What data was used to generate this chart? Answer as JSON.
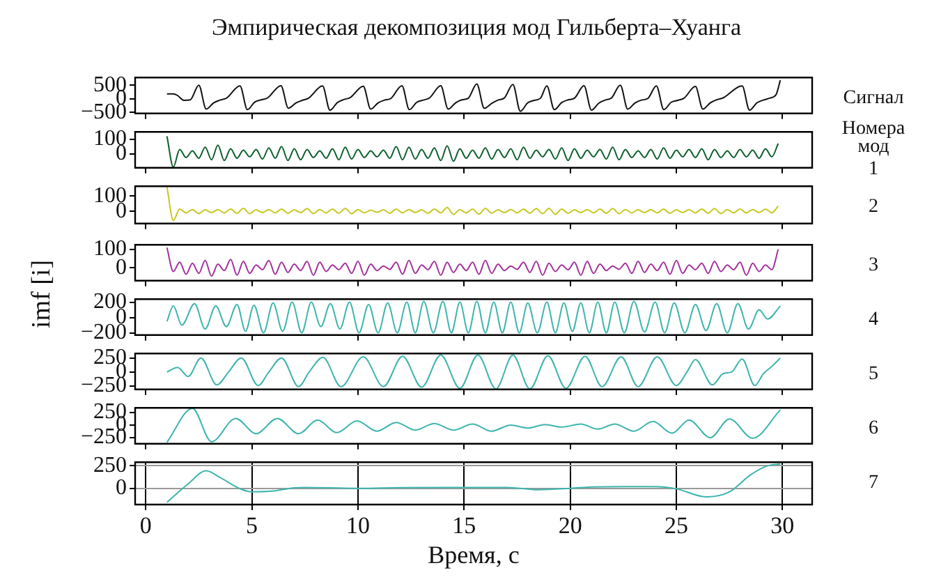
{
  "chart_data": [
    {
      "type": "line",
      "title": "Эмпирическая декомпозиция мод Гильберта–Хуанга",
      "y2label": "Сигнал",
      "xlim": [
        -0.5,
        31.4
      ],
      "xticks": [
        0,
        5,
        10,
        15,
        20,
        25,
        30
      ],
      "ylim": [
        -540,
        780
      ],
      "yticks": [
        {
          "value": -500,
          "label": "−500"
        },
        0,
        500
      ],
      "tick_labels": "y",
      "series": [
        {
          "color": "#111111",
          "x": [
            1.0,
            1.3,
            1.5,
            1.8,
            2.1,
            2.5,
            2.85,
            3.2,
            3.5,
            3.8,
            4.44,
            4.79,
            5.14,
            5.44,
            5.74,
            6.37,
            6.72,
            7.07,
            7.37,
            7.67,
            8.33,
            8.68,
            9.03,
            9.33,
            9.63,
            10.25,
            10.6,
            10.95,
            11.25,
            11.55,
            12.07,
            12.42,
            12.77,
            13.07,
            13.37,
            13.9,
            14.25,
            14.6,
            14.9,
            15.2,
            15.6,
            15.95,
            16.3,
            16.6,
            16.9,
            17.3,
            17.65,
            18.0,
            18.3,
            18.6,
            18.9,
            19.25,
            19.6,
            19.9,
            20.2,
            20.65,
            21.0,
            21.35,
            21.65,
            21.95,
            22.36,
            22.71,
            23.06,
            23.36,
            23.66,
            24.06,
            24.41,
            24.76,
            25.06,
            25.36,
            25.9,
            26.25,
            26.6,
            26.9,
            27.2,
            28.1,
            28.45,
            28.8,
            29.1,
            29.4,
            29.7,
            29.9
          ],
          "values": [
            180,
            180,
            120,
            -60,
            -40,
            500,
            -380,
            -150,
            -50,
            20,
            470,
            -400,
            -120,
            -40,
            30,
            480,
            -350,
            -160,
            -60,
            20,
            470,
            -420,
            -140,
            -30,
            40,
            460,
            -380,
            -150,
            -50,
            10,
            480,
            -400,
            -130,
            -50,
            30,
            480,
            -380,
            -150,
            -40,
            20,
            540,
            -350,
            -170,
            -50,
            30,
            520,
            -460,
            -150,
            -60,
            20,
            470,
            -400,
            -140,
            -40,
            20,
            480,
            -420,
            -160,
            -50,
            30,
            500,
            -380,
            -150,
            -50,
            10,
            470,
            -400,
            -130,
            -60,
            20,
            450,
            -380,
            -150,
            -40,
            30,
            470,
            -420,
            -150,
            -50,
            20,
            150,
            680
          ]
        }
      ]
    },
    {
      "type": "line",
      "y2label": "1",
      "annotations": [
        "Номера мод"
      ],
      "xlim": [
        -0.5,
        31.4
      ],
      "xticks": [
        0,
        5,
        10,
        15,
        20,
        25,
        30
      ],
      "ylim": [
        -95,
        150
      ],
      "yticks": [
        0,
        100
      ],
      "tick_labels": "y",
      "series": [
        {
          "color": "#0b5e2a",
          "x": [
            1.0,
            1.3,
            1.6,
            1.9,
            2.2,
            2.5,
            2.8,
            3.1,
            3.4,
            3.7,
            4.0,
            4.3,
            4.6,
            4.9,
            5.2,
            5.5,
            5.8,
            6.1,
            6.4,
            6.7,
            7.0,
            7.3,
            7.6,
            7.9,
            8.2,
            8.5,
            8.8,
            9.1,
            9.4,
            9.7,
            10.0,
            10.3,
            10.6,
            10.9,
            11.2,
            11.5,
            11.8,
            12.1,
            12.4,
            12.7,
            13.0,
            13.3,
            13.6,
            13.9,
            14.2,
            14.5,
            14.8,
            15.1,
            15.4,
            15.7,
            16.0,
            16.3,
            16.6,
            16.9,
            17.2,
            17.5,
            17.8,
            18.1,
            18.4,
            18.7,
            19.0,
            19.3,
            19.6,
            19.9,
            20.2,
            20.5,
            20.8,
            21.1,
            21.4,
            21.7,
            22.0,
            22.3,
            22.6,
            22.9,
            23.2,
            23.5,
            23.8,
            24.1,
            24.4,
            24.7,
            25.0,
            25.3,
            25.6,
            25.9,
            26.2,
            26.5,
            26.8,
            27.1,
            27.4,
            27.7,
            28.0,
            28.3,
            28.6,
            28.9,
            29.2,
            29.5,
            29.8
          ],
          "values": [
            120,
            -90,
            30,
            -25,
            20,
            -30,
            45,
            -40,
            60,
            -45,
            35,
            -30,
            25,
            -20,
            30,
            -35,
            40,
            -30,
            50,
            -45,
            35,
            -40,
            30,
            -25,
            20,
            -30,
            35,
            -40,
            45,
            -35,
            30,
            -25,
            20,
            -20,
            25,
            -30,
            50,
            -40,
            45,
            -35,
            30,
            -30,
            40,
            -45,
            55,
            -50,
            35,
            -30,
            25,
            -30,
            40,
            -35,
            30,
            -25,
            35,
            -40,
            45,
            -30,
            25,
            -20,
            30,
            -35,
            40,
            -45,
            35,
            -30,
            25,
            -20,
            30,
            -35,
            45,
            -40,
            30,
            -25,
            20,
            -25,
            30,
            -35,
            40,
            -30,
            25,
            -20,
            30,
            -25,
            35,
            -40,
            30,
            -25,
            20,
            -25,
            30,
            -20,
            25,
            -30,
            35,
            -20,
            70
          ]
        }
      ]
    },
    {
      "type": "line",
      "y2label": "2",
      "xlim": [
        -0.5,
        31.4
      ],
      "xticks": [
        0,
        5,
        10,
        15,
        20,
        25,
        30
      ],
      "ylim": [
        -80,
        165
      ],
      "yticks": [
        0,
        100
      ],
      "tick_labels": "y",
      "series": [
        {
          "color": "#c8c820",
          "x": [
            1.0,
            1.3,
            1.6,
            1.9,
            2.2,
            2.5,
            2.8,
            3.1,
            3.4,
            3.7,
            4.0,
            4.3,
            4.6,
            4.9,
            5.2,
            5.5,
            5.8,
            6.1,
            6.4,
            6.7,
            7.0,
            7.3,
            7.6,
            7.9,
            8.2,
            8.5,
            8.8,
            9.1,
            9.4,
            9.7,
            10.0,
            10.3,
            10.6,
            10.9,
            11.2,
            11.5,
            11.8,
            12.1,
            12.4,
            12.7,
            13.0,
            13.3,
            13.6,
            13.9,
            14.2,
            14.5,
            14.8,
            15.1,
            15.4,
            15.7,
            16.0,
            16.3,
            16.6,
            16.9,
            17.2,
            17.5,
            17.8,
            18.1,
            18.4,
            18.7,
            19.0,
            19.3,
            19.6,
            19.9,
            20.2,
            20.5,
            20.8,
            21.1,
            21.4,
            21.7,
            22.0,
            22.3,
            22.6,
            22.9,
            23.2,
            23.5,
            23.8,
            24.1,
            24.4,
            24.7,
            25.0,
            25.3,
            25.6,
            25.9,
            26.2,
            26.5,
            26.8,
            27.1,
            27.4,
            27.7,
            28.0,
            28.3,
            28.6,
            28.9,
            29.2,
            29.5,
            29.8
          ],
          "values": [
            160,
            -60,
            15,
            -10,
            12,
            -15,
            10,
            -8,
            12,
            -10,
            15,
            -12,
            20,
            -15,
            10,
            -8,
            12,
            -10,
            15,
            -12,
            10,
            -8,
            18,
            -15,
            12,
            -10,
            15,
            -12,
            20,
            -15,
            12,
            -10,
            8,
            -6,
            10,
            -12,
            15,
            -10,
            12,
            -8,
            10,
            -12,
            15,
            -10,
            25,
            -20,
            12,
            -10,
            15,
            -18,
            20,
            -12,
            10,
            -8,
            12,
            -10,
            15,
            -12,
            18,
            -15,
            20,
            -20,
            15,
            -12,
            10,
            -8,
            12,
            -10,
            15,
            -12,
            18,
            -15,
            12,
            -10,
            10,
            -8,
            12,
            -10,
            15,
            -12,
            10,
            -8,
            12,
            -10,
            15,
            -12,
            18,
            -15,
            12,
            -10,
            15,
            -10,
            12,
            -8,
            15,
            -10,
            35
          ]
        }
      ]
    },
    {
      "type": "line",
      "y2label": "3",
      "xlim": [
        -0.5,
        31.4
      ],
      "xticks": [
        0,
        5,
        10,
        15,
        20,
        25,
        30
      ],
      "ylim": [
        -70,
        125
      ],
      "yticks": [
        0,
        100
      ],
      "tick_labels": "y",
      "series": [
        {
          "color": "#a3309b",
          "x": [
            1.0,
            1.3,
            1.6,
            1.9,
            2.2,
            2.5,
            2.8,
            3.1,
            3.4,
            3.7,
            4.0,
            4.3,
            4.6,
            4.9,
            5.2,
            5.5,
            5.8,
            6.1,
            6.4,
            6.7,
            7.0,
            7.3,
            7.6,
            7.9,
            8.2,
            8.5,
            8.8,
            9.1,
            9.4,
            9.7,
            10.0,
            10.3,
            10.6,
            10.9,
            11.2,
            11.5,
            11.8,
            12.1,
            12.4,
            12.7,
            13.0,
            13.3,
            13.6,
            13.9,
            14.2,
            14.5,
            14.8,
            15.1,
            15.4,
            15.7,
            16.0,
            16.3,
            16.6,
            16.9,
            17.2,
            17.5,
            17.8,
            18.1,
            18.4,
            18.7,
            19.0,
            19.3,
            19.6,
            19.9,
            20.2,
            20.5,
            20.8,
            21.1,
            21.4,
            21.7,
            22.0,
            22.3,
            22.6,
            22.9,
            23.2,
            23.5,
            23.8,
            24.1,
            24.4,
            24.7,
            25.0,
            25.3,
            25.6,
            25.9,
            26.2,
            26.5,
            26.8,
            27.1,
            27.4,
            27.7,
            28.0,
            28.3,
            28.6,
            28.9,
            29.2,
            29.5,
            29.8
          ],
          "values": [
            110,
            -20,
            30,
            -35,
            25,
            -30,
            40,
            -45,
            20,
            -15,
            45,
            -40,
            35,
            -30,
            15,
            -10,
            40,
            -35,
            30,
            -25,
            20,
            -15,
            35,
            -40,
            30,
            -20,
            15,
            -10,
            25,
            -30,
            35,
            -40,
            20,
            -15,
            10,
            -8,
            30,
            -35,
            40,
            -30,
            15,
            -10,
            35,
            -40,
            30,
            -25,
            20,
            -15,
            30,
            -35,
            40,
            -30,
            20,
            -15,
            10,
            -8,
            30,
            -25,
            35,
            -40,
            25,
            -20,
            15,
            -10,
            30,
            -40,
            35,
            -30,
            20,
            -15,
            10,
            -8,
            25,
            -30,
            35,
            -25,
            20,
            -15,
            30,
            -35,
            40,
            -30,
            15,
            -10,
            25,
            -30,
            35,
            -20,
            15,
            -10,
            30,
            -40,
            25,
            -20,
            15,
            -10,
            100
          ]
        }
      ]
    },
    {
      "type": "line",
      "ylabel": "imf [i]",
      "y2label": "4",
      "xlim": [
        -0.5,
        31.4
      ],
      "xticks": [
        0,
        5,
        10,
        15,
        20,
        25,
        30
      ],
      "ylim": [
        -230,
        240
      ],
      "yticks": [
        {
          "value": -200,
          "label": "−200"
        },
        0,
        200
      ],
      "tick_labels": "y",
      "series": [
        {
          "color": "#3db5ad",
          "x": [
            1.0,
            1.3,
            1.7,
            2.3,
            2.8,
            3.3,
            3.8,
            4.3,
            4.7,
            5.1,
            5.55,
            6.0,
            6.45,
            6.9,
            7.35,
            7.8,
            8.25,
            8.7,
            9.15,
            9.6,
            10.05,
            10.5,
            10.95,
            11.4,
            11.85,
            12.3,
            12.7,
            13.1,
            13.55,
            14.0,
            14.4,
            14.8,
            15.2,
            15.6,
            16.0,
            16.4,
            16.8,
            17.2,
            17.6,
            18.0,
            18.45,
            18.9,
            19.3,
            19.7,
            20.1,
            20.5,
            20.9,
            21.3,
            21.7,
            22.1,
            22.55,
            23.0,
            23.5,
            24.0,
            24.45,
            24.9,
            25.4,
            25.9,
            26.4,
            26.9,
            27.4,
            27.9,
            28.4,
            28.9,
            29.3,
            29.9
          ],
          "values": [
            -50,
            150,
            -100,
            180,
            -150,
            150,
            -120,
            170,
            -180,
            160,
            -200,
            190,
            -180,
            200,
            -200,
            200,
            -120,
            180,
            -150,
            200,
            -200,
            170,
            -200,
            190,
            -200,
            200,
            -200,
            210,
            -200,
            210,
            -200,
            200,
            -200,
            210,
            -200,
            200,
            -200,
            200,
            -200,
            190,
            -200,
            200,
            -200,
            190,
            -180,
            190,
            -200,
            200,
            -200,
            200,
            -200,
            210,
            -190,
            200,
            -200,
            190,
            -200,
            170,
            -170,
            180,
            -200,
            180,
            -150,
            100,
            -20,
            150
          ]
        }
      ]
    },
    {
      "type": "line",
      "y2label": "5",
      "xlim": [
        -0.5,
        31.4
      ],
      "xticks": [
        0,
        5,
        10,
        15,
        20,
        25,
        30
      ],
      "ylim": [
        -310,
        330
      ],
      "yticks": [
        {
          "value": -250,
          "label": "−250"
        },
        0,
        250
      ],
      "tick_labels": "y",
      "series": [
        {
          "color": "#3db5ad",
          "x": [
            1.0,
            1.5,
            2.0,
            2.6,
            3.35,
            3.9,
            4.5,
            5.3,
            5.8,
            6.4,
            7.2,
            7.7,
            8.35,
            9.2,
            10.25,
            11.2,
            12.1,
            13.0,
            13.9,
            14.8,
            15.65,
            16.5,
            17.3,
            18.1,
            18.95,
            19.8,
            20.7,
            21.5,
            22.4,
            23.2,
            24.1,
            25.0,
            25.5,
            25.9,
            26.7,
            27.2,
            27.6,
            28.1,
            28.7,
            29.1,
            29.5,
            29.9
          ],
          "values": [
            0,
            80,
            -80,
            250,
            -230,
            0,
            250,
            -240,
            0,
            250,
            -260,
            0,
            260,
            -260,
            270,
            -260,
            280,
            -270,
            300,
            -290,
            300,
            -300,
            300,
            -300,
            290,
            -290,
            280,
            -260,
            270,
            -260,
            270,
            -240,
            0,
            220,
            -230,
            -30,
            0,
            230,
            -240,
            -30,
            100,
            250
          ]
        }
      ]
    },
    {
      "type": "line",
      "y2label": "6",
      "xlim": [
        -0.5,
        31.4
      ],
      "xticks": [
        0,
        5,
        10,
        15,
        20,
        25,
        30
      ],
      "ylim": [
        -370,
        340
      ],
      "yticks": [
        {
          "value": -250,
          "label": "−250"
        },
        0,
        250
      ],
      "tick_labels": "y",
      "series": [
        {
          "color": "#3db5ad",
          "x": [
            1.0,
            2.2,
            3.1,
            4.24,
            5.2,
            6.2,
            7.2,
            8.1,
            9.0,
            9.95,
            10.9,
            11.8,
            12.7,
            13.6,
            14.5,
            15.4,
            16.3,
            17.2,
            18.0,
            18.8,
            19.6,
            20.5,
            21.3,
            22.1,
            23.0,
            23.9,
            24.8,
            25.6,
            26.6,
            27.5,
            28.6,
            29.9
          ],
          "values": [
            -340,
            330,
            -330,
            130,
            -170,
            130,
            -170,
            100,
            -150,
            80,
            -120,
            50,
            -100,
            30,
            -100,
            20,
            -120,
            0,
            -60,
            10,
            -40,
            20,
            -80,
            20,
            -120,
            70,
            -160,
            100,
            -250,
            120,
            -260,
            300
          ]
        }
      ]
    },
    {
      "type": "line",
      "y2label": "7",
      "xlabel": "Время, с",
      "grid": true,
      "xlim": [
        -0.5,
        31.4
      ],
      "xticks": [
        0,
        5,
        10,
        15,
        20,
        25,
        30
      ],
      "ylim": [
        -180,
        290
      ],
      "yticks": [
        0,
        250
      ],
      "series": [
        {
          "color": "#3db5ad",
          "x": [
            1.0,
            2.0,
            2.85,
            3.5,
            4.5,
            5.0,
            6.0,
            7.0,
            7.5,
            10.0,
            12.0,
            15.0,
            17.0,
            18.5,
            20.0,
            21.0,
            22.5,
            24.0,
            25.0,
            26.4,
            27.5,
            28.5,
            29.3,
            29.9
          ],
          "values": [
            -155,
            50,
            195,
            120,
            -10,
            -39,
            -30,
            5,
            10,
            0,
            8,
            10,
            10,
            -15,
            0,
            15,
            20,
            20,
            -5,
            -95,
            -40,
            150,
            250,
            270
          ]
        }
      ]
    }
  ]
}
